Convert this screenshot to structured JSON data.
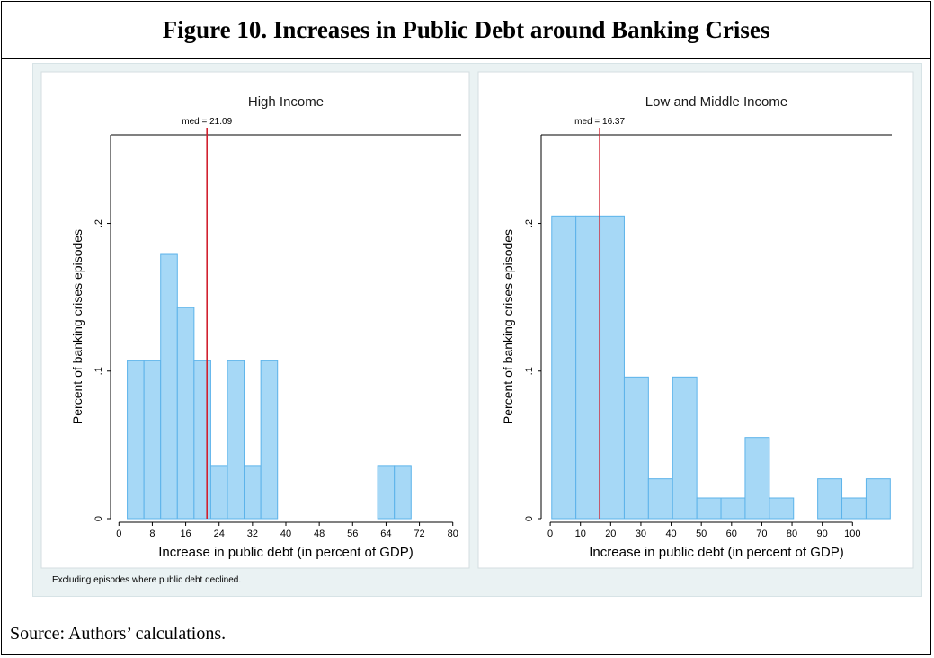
{
  "figure_title": "Figure 10. Increases in Public Debt around Banking Crises",
  "note": "Excluding episodes where public debt declined.",
  "source": "Source: Authors’ calculations.",
  "colors": {
    "bar_fill": "#a6d8f6",
    "bar_stroke": "#5cb3ea",
    "median_line": "#d1202f",
    "panel_bg": "#ffffff",
    "outer_bg": "#eaf2f3"
  },
  "chart_data": [
    {
      "type": "bar",
      "title": "High Income",
      "median_label": "med = 21.09",
      "median": 21.09,
      "xlabel": "Increase in public debt (in percent of GDP)",
      "ylabel": "Percent of banking crises episodes",
      "xlim": [
        -2,
        82
      ],
      "ylim": [
        0,
        0.26
      ],
      "xticks": [
        0,
        8,
        16,
        24,
        32,
        40,
        48,
        56,
        64,
        72,
        80
      ],
      "yticks": [
        0,
        0.1,
        0.2
      ],
      "ytick_labels": [
        "0",
        ".1",
        ".2"
      ],
      "bin_width": 4,
      "bins": [
        {
          "x0": 2,
          "value": 0.107
        },
        {
          "x0": 6,
          "value": 0.107
        },
        {
          "x0": 10,
          "value": 0.179
        },
        {
          "x0": 14,
          "value": 0.143
        },
        {
          "x0": 18,
          "value": 0.107
        },
        {
          "x0": 22,
          "value": 0.036
        },
        {
          "x0": 26,
          "value": 0.107
        },
        {
          "x0": 30,
          "value": 0.036
        },
        {
          "x0": 34,
          "value": 0.107
        },
        {
          "x0": 62,
          "value": 0.036
        },
        {
          "x0": 66,
          "value": 0.036
        }
      ]
    },
    {
      "type": "bar",
      "title": "Low and Middle Income",
      "median_label": "med = 16.37",
      "median": 16.37,
      "xlabel": "Increase in public debt (in percent of GDP)",
      "ylabel": "Percent of banking crises episodes",
      "xlim": [
        -3,
        113
      ],
      "ylim": [
        0,
        0.26
      ],
      "xticks": [
        0,
        10,
        20,
        30,
        40,
        50,
        60,
        70,
        80,
        90,
        100
      ],
      "yticks": [
        0,
        0.1,
        0.2
      ],
      "ytick_labels": [
        "0",
        ".1",
        ".2"
      ],
      "bin_width": 8,
      "bins": [
        {
          "x0": 0.5,
          "value": 0.205
        },
        {
          "x0": 8.5,
          "value": 0.205
        },
        {
          "x0": 16.5,
          "value": 0.205
        },
        {
          "x0": 24.5,
          "value": 0.096
        },
        {
          "x0": 32.5,
          "value": 0.027
        },
        {
          "x0": 40.5,
          "value": 0.096
        },
        {
          "x0": 48.5,
          "value": 0.014
        },
        {
          "x0": 56.5,
          "value": 0.014
        },
        {
          "x0": 64.5,
          "value": 0.055
        },
        {
          "x0": 72.5,
          "value": 0.014
        },
        {
          "x0": 80.5,
          "value": 0.0
        },
        {
          "x0": 88.5,
          "value": 0.027
        },
        {
          "x0": 96.5,
          "value": 0.014
        },
        {
          "x0": 104.5,
          "value": 0.027
        }
      ]
    }
  ]
}
